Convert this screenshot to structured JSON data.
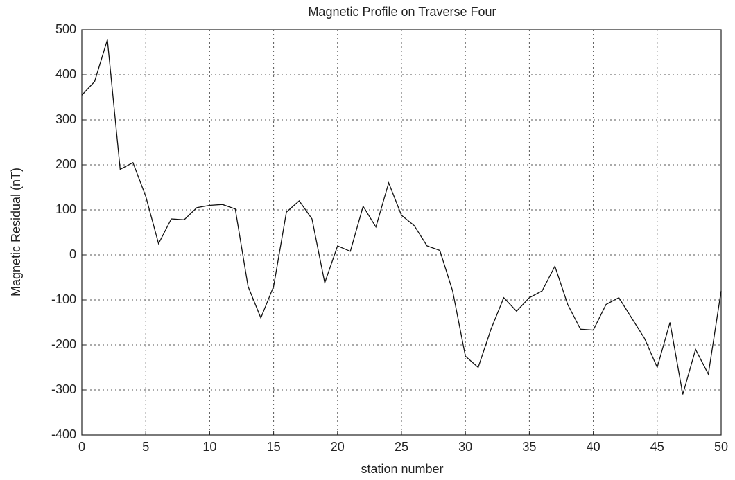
{
  "chart_data": {
    "type": "line",
    "title": "Magnetic Profile on Traverse Four",
    "xlabel": "station number",
    "ylabel": "Magnetic Residual (nT)",
    "x": [
      0,
      1,
      2,
      3,
      4,
      5,
      6,
      7,
      8,
      9,
      10,
      11,
      12,
      13,
      14,
      15,
      16,
      17,
      18,
      19,
      20,
      21,
      22,
      23,
      24,
      25,
      26,
      27,
      28,
      29,
      30,
      31,
      32,
      33,
      34,
      35,
      36,
      37,
      38,
      39,
      40,
      41,
      42,
      43,
      44,
      45,
      46,
      47,
      48,
      49,
      50
    ],
    "series": [
      {
        "name": "profile",
        "color": "#111111",
        "values": [
          355,
          385,
          478,
          190,
          205,
          130,
          25,
          80,
          78,
          105,
          110,
          112,
          102,
          -70,
          -140,
          -70,
          95,
          120,
          80,
          -62,
          20,
          8,
          108,
          62,
          160,
          88,
          65,
          20,
          10,
          -80,
          -225,
          -250,
          -165,
          -95,
          -125,
          -95,
          -80,
          -25,
          -110,
          -165,
          -167,
          -110,
          -95,
          -140,
          -185,
          -250,
          -150,
          -310,
          -210,
          -265,
          -80
        ]
      }
    ],
    "xlim": [
      0,
      50
    ],
    "xticks": [
      0,
      5,
      10,
      15,
      20,
      25,
      30,
      35,
      40,
      45,
      50
    ],
    "ylim": [
      -400,
      500
    ],
    "yticks": [
      -400,
      -300,
      -200,
      -100,
      0,
      100,
      200,
      300,
      400,
      500
    ],
    "grid": true
  }
}
